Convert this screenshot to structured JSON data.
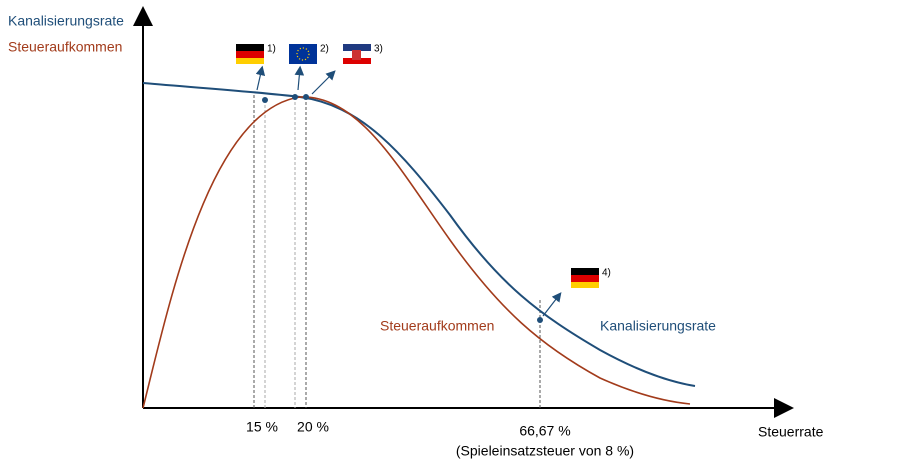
{
  "legend": {
    "blue": "Kanalisierungsrate",
    "red": "Steueraufkommen"
  },
  "curve_labels": {
    "red": "Steueraufkommen",
    "blue": "Kanalisierungsrate"
  },
  "x_labels": {
    "a": "15 %",
    "b": "20 %",
    "c": "66,67 %",
    "c_note": "(Spieleinsatzsteuer von 8 %)"
  },
  "x_axis_label": "Steuerrate",
  "notes": [
    "1)",
    "2)",
    "3)",
    "4)"
  ]
}
